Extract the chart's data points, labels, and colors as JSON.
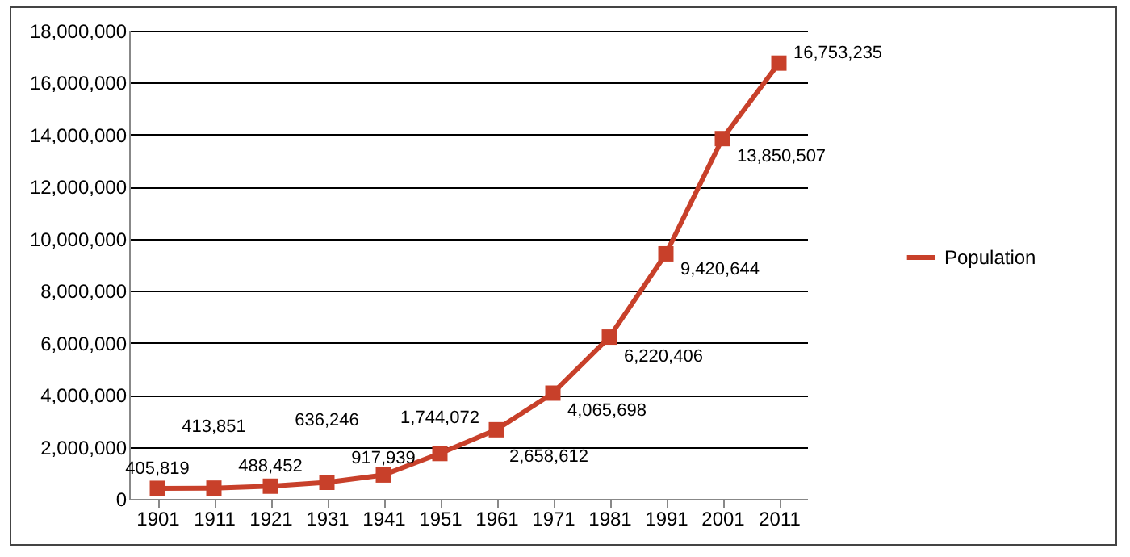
{
  "chart_data": {
    "type": "line",
    "categories": [
      "1901",
      "1911",
      "1921",
      "1931",
      "1941",
      "1951",
      "1961",
      "1971",
      "1981",
      "1991",
      "2001",
      "2011"
    ],
    "series": [
      {
        "name": "Population",
        "color": "#c8402a",
        "values": [
          405819,
          413851,
          488452,
          636246,
          917939,
          1744072,
          2658612,
          4065698,
          6220406,
          9420644,
          13850507,
          16753235
        ],
        "value_labels": [
          "405,819",
          "413,851",
          "488,452",
          "636,246",
          "917,939",
          "1,744,072",
          "2,658,612",
          "4,065,698",
          "6,220,406",
          "9,420,644",
          "13,850,507",
          "16,753,235"
        ]
      }
    ],
    "ylim": [
      0,
      18000000
    ],
    "yticks": [
      {
        "value": 0,
        "label": "0"
      },
      {
        "value": 2000000,
        "label": "2,000,000"
      },
      {
        "value": 4000000,
        "label": "4,000,000"
      },
      {
        "value": 6000000,
        "label": "6,000,000"
      },
      {
        "value": 8000000,
        "label": "8,000,000"
      },
      {
        "value": 10000000,
        "label": "10,000,000"
      },
      {
        "value": 12000000,
        "label": "12,000,000"
      },
      {
        "value": 14000000,
        "label": "14,000,000"
      },
      {
        "value": 16000000,
        "label": "16,000,000"
      },
      {
        "value": 18000000,
        "label": "18,000,000"
      }
    ],
    "grid": "y",
    "legend": "right",
    "marker": "square",
    "line_style": "solid"
  }
}
